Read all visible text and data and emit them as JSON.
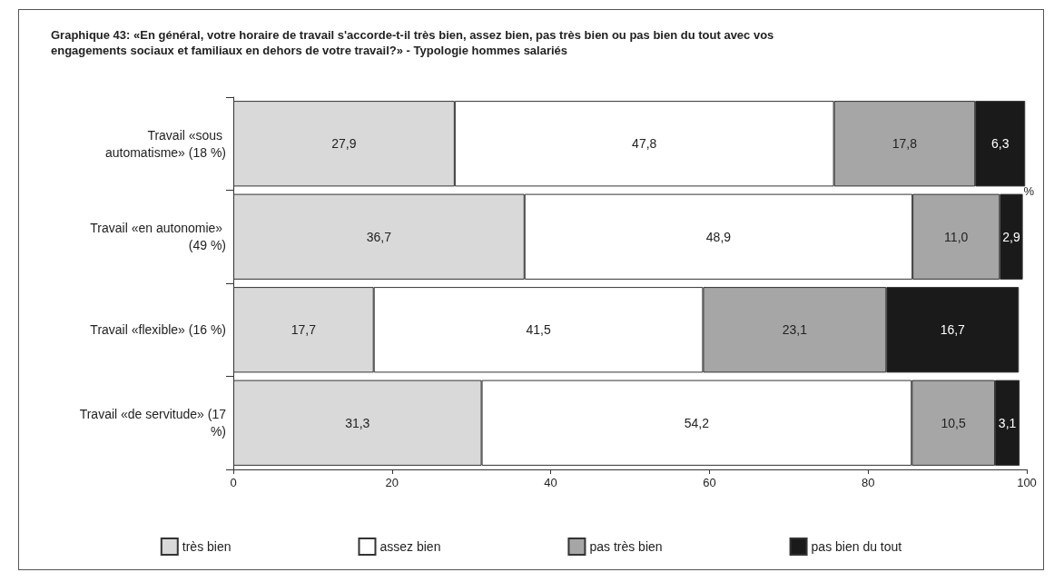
{
  "chart_data": {
    "type": "bar",
    "orientation": "horizontal",
    "stacked": true,
    "title": "Graphique 43: «En général, votre horaire de travail s'accorde-t-il très bien, assez bien, pas très bien ou pas bien du tout avec vos engagements sociaux et familiaux en dehors de votre travail?» - Typologie hommes salariés",
    "xlabel": "%",
    "categories": [
      "Travail «sous automatisme» (18 %)",
      "Travail «en autonomie» (49 %)",
      "Travail «flexible» (16 %)",
      "Travail «de servitude» (17 %)"
    ],
    "series": [
      {
        "name": "très bien",
        "color": "#d9d9d9",
        "values": [
          27.9,
          36.7,
          17.7,
          31.3
        ],
        "value_labels": [
          "27,9",
          "36,7",
          "17,7",
          "31,3"
        ]
      },
      {
        "name": "assez bien",
        "color": "#ffffff",
        "values": [
          47.8,
          48.9,
          41.5,
          54.2
        ],
        "value_labels": [
          "47,8",
          "48,9",
          "41,5",
          "54,2"
        ]
      },
      {
        "name": "pas très bien",
        "color": "#a6a6a6",
        "values": [
          17.8,
          11.0,
          23.1,
          10.5
        ],
        "value_labels": [
          "17,8",
          "11,0",
          "23,1",
          "10,5"
        ]
      },
      {
        "name": "pas bien du tout",
        "color": "#1a1a1a",
        "values": [
          6.3,
          2.9,
          16.7,
          3.1
        ],
        "value_labels": [
          "6,3",
          "2,9",
          "16,7",
          "3,1"
        ]
      }
    ],
    "xlim": [
      0,
      100
    ],
    "xticks": [
      0,
      20,
      40,
      60,
      80,
      100
    ],
    "grid": false,
    "legend": "bottom"
  }
}
